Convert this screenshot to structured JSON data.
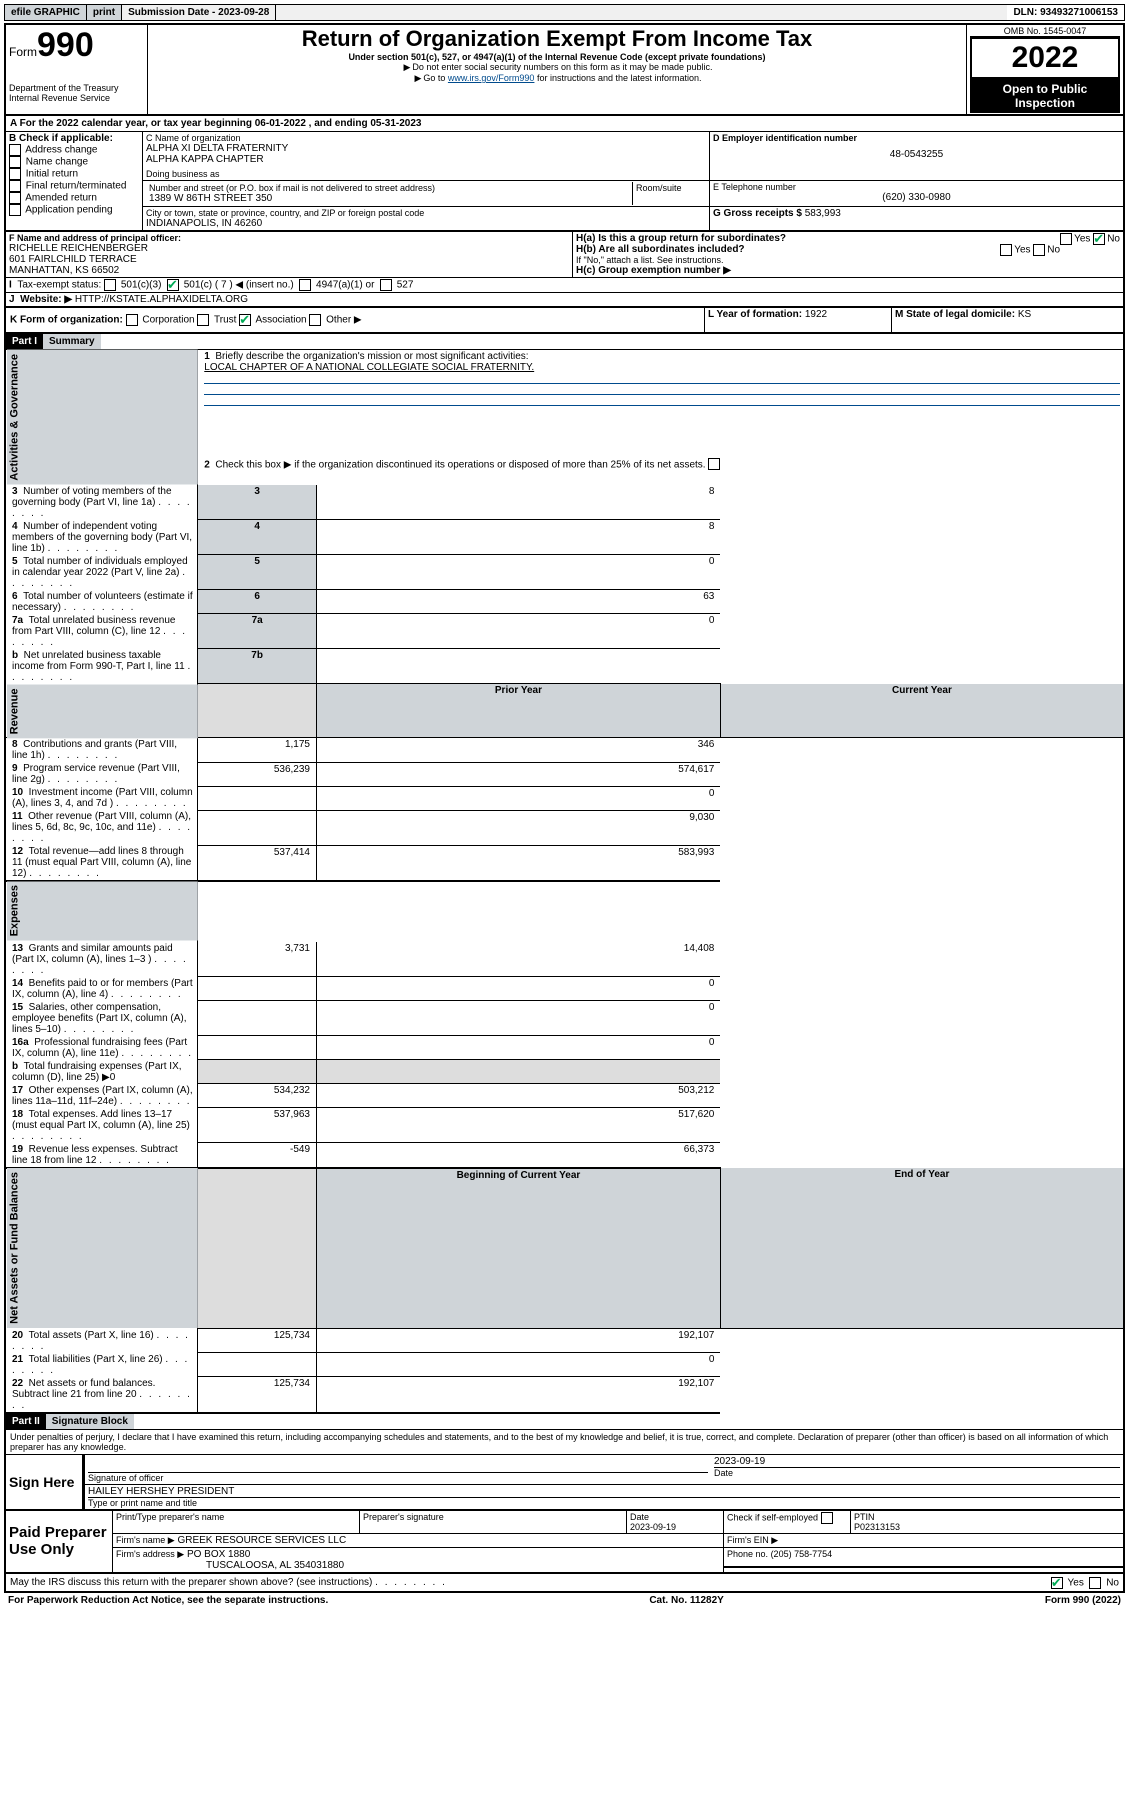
{
  "topbar": {
    "efile": "efile GRAPHIC",
    "print": "print",
    "sub_label": "Submission Date - ",
    "sub_date": "2023-09-28",
    "dln_label": "DLN: ",
    "dln": "93493271006153"
  },
  "header": {
    "form_prefix": "Form",
    "form_num": "990",
    "title": "Return of Organization Exempt From Income Tax",
    "subtitle": "Under section 501(c), 527, or 4947(a)(1) of the Internal Revenue Code (except private foundations)",
    "note1": "Do not enter social security numbers on this form as it may be made public.",
    "note2_pre": "Go to ",
    "note2_link": "www.irs.gov/Form990",
    "note2_post": " for instructions and the latest information.",
    "dept": "Department of the Treasury\nInternal Revenue Service",
    "omb": "OMB No. 1545-0047",
    "year": "2022",
    "inspect": "Open to Public Inspection"
  },
  "periodA": {
    "text_pre": "For the 2022 calendar year, or tax year beginning ",
    "begin": "06-01-2022",
    "mid": " , and ending ",
    "end": "05-31-2023"
  },
  "blockB": {
    "label": "B Check if applicable:",
    "items": [
      "Address change",
      "Name change",
      "Initial return",
      "Final return/terminated",
      "Amended return",
      "Application pending"
    ]
  },
  "blockC": {
    "name_label": "C Name of organization",
    "name1": "ALPHA XI DELTA FRATERNITY",
    "name2": "ALPHA KAPPA CHAPTER",
    "dba_label": "Doing business as",
    "addr_label": "Number and street (or P.O. box if mail is not delivered to street address)",
    "room_label": "Room/suite",
    "addr": "1389 W 86TH STREET 350",
    "city_label": "City or town, state or province, country, and ZIP or foreign postal code",
    "city": "INDIANAPOLIS, IN  46260"
  },
  "blockD": {
    "label": "D Employer identification number",
    "value": "48-0543255"
  },
  "blockE": {
    "label": "E Telephone number",
    "value": "(620) 330-0980"
  },
  "blockG": {
    "label": "G Gross receipts $",
    "value": "583,993"
  },
  "blockF": {
    "label": "F Name and address of principal officer:",
    "name": "RICHELLE REICHENBERGER",
    "addr": "601 FAIRLCHILD TERRACE",
    "city": "MANHATTAN, KS  66502"
  },
  "blockH": {
    "ha": "H(a)  Is this a group return for subordinates?",
    "hb": "H(b)  Are all subordinates included?",
    "hb_note": "If \"No,\" attach a list. See instructions.",
    "hc": "H(c)  Group exemption number ▶",
    "yes": "Yes",
    "no": "No"
  },
  "blockI": {
    "label": "Tax-exempt status:",
    "c3": "501(c)(3)",
    "c": "501(c) ( 7 ) ◀ (insert no.)",
    "a1": "4947(a)(1) or",
    "s527": "527"
  },
  "blockJ": {
    "label": "Website: ▶",
    "value": "HTTP://KSTATE.ALPHAXIDELTA.ORG"
  },
  "blockK": {
    "label": "K Form of organization:",
    "corp": "Corporation",
    "trust": "Trust",
    "assoc": "Association",
    "other": "Other ▶"
  },
  "blockL": {
    "label": "L Year of formation: ",
    "value": "1922"
  },
  "blockM": {
    "label": "M State of legal domicile: ",
    "value": "KS"
  },
  "part1": {
    "hdr": "Part I",
    "title": "Summary"
  },
  "summary": {
    "line1_label": "Briefly describe the organization's mission or most significant activities:",
    "line1_text": "LOCAL CHAPTER OF A NATIONAL COLLEGIATE SOCIAL FRATERNITY.",
    "line2": "Check this box ▶        if the organization discontinued its operations or disposed of more than 25% of its net assets.",
    "rows_top": [
      {
        "n": "3",
        "label": "Number of voting members of the governing body (Part VI, line 1a)",
        "box": "3",
        "val": "8"
      },
      {
        "n": "4",
        "label": "Number of independent voting members of the governing body (Part VI, line 1b)",
        "box": "4",
        "val": "8"
      },
      {
        "n": "5",
        "label": "Total number of individuals employed in calendar year 2022 (Part V, line 2a)",
        "box": "5",
        "val": "0"
      },
      {
        "n": "6",
        "label": "Total number of volunteers (estimate if necessary)",
        "box": "6",
        "val": "63"
      },
      {
        "n": "7a",
        "label": "Total unrelated business revenue from Part VIII, column (C), line 12",
        "box": "7a",
        "val": "0"
      },
      {
        "n": "b",
        "label": "Net unrelated business taxable income from Form 990-T, Part I, line 11",
        "box": "7b",
        "val": ""
      }
    ],
    "prior_hdr": "Prior Year",
    "curr_hdr": "Current Year",
    "revenue": [
      {
        "n": "8",
        "label": "Contributions and grants (Part VIII, line 1h)",
        "p": "1,175",
        "c": "346"
      },
      {
        "n": "9",
        "label": "Program service revenue (Part VIII, line 2g)",
        "p": "536,239",
        "c": "574,617"
      },
      {
        "n": "10",
        "label": "Investment income (Part VIII, column (A), lines 3, 4, and 7d )",
        "p": "",
        "c": "0"
      },
      {
        "n": "11",
        "label": "Other revenue (Part VIII, column (A), lines 5, 6d, 8c, 9c, 10c, and 11e)",
        "p": "",
        "c": "9,030"
      },
      {
        "n": "12",
        "label": "Total revenue—add lines 8 through 11 (must equal Part VIII, column (A), line 12)",
        "p": "537,414",
        "c": "583,993"
      }
    ],
    "expenses": [
      {
        "n": "13",
        "label": "Grants and similar amounts paid (Part IX, column (A), lines 1–3 )",
        "p": "3,731",
        "c": "14,408"
      },
      {
        "n": "14",
        "label": "Benefits paid to or for members (Part IX, column (A), line 4)",
        "p": "",
        "c": "0"
      },
      {
        "n": "15",
        "label": "Salaries, other compensation, employee benefits (Part IX, column (A), lines 5–10)",
        "p": "",
        "c": "0"
      },
      {
        "n": "16a",
        "label": "Professional fundraising fees (Part IX, column (A), line 11e)",
        "p": "",
        "c": "0"
      },
      {
        "n": "b",
        "label": "Total fundraising expenses (Part IX, column (D), line 25) ▶0",
        "p": "—",
        "c": "—"
      },
      {
        "n": "17",
        "label": "Other expenses (Part IX, column (A), lines 11a–11d, 11f–24e)",
        "p": "534,232",
        "c": "503,212"
      },
      {
        "n": "18",
        "label": "Total expenses. Add lines 13–17 (must equal Part IX, column (A), line 25)",
        "p": "537,963",
        "c": "517,620"
      },
      {
        "n": "19",
        "label": "Revenue less expenses. Subtract line 18 from line 12",
        "p": "-549",
        "c": "66,373"
      }
    ],
    "net_hdr_b": "Beginning of Current Year",
    "net_hdr_e": "End of Year",
    "net": [
      {
        "n": "20",
        "label": "Total assets (Part X, line 16)",
        "p": "125,734",
        "c": "192,107"
      },
      {
        "n": "21",
        "label": "Total liabilities (Part X, line 26)",
        "p": "",
        "c": "0"
      },
      {
        "n": "22",
        "label": "Net assets or fund balances. Subtract line 21 from line 20",
        "p": "125,734",
        "c": "192,107"
      }
    ],
    "vtabs": {
      "gov": "Activities & Governance",
      "rev": "Revenue",
      "exp": "Expenses",
      "net": "Net Assets or\nFund Balances"
    }
  },
  "part2": {
    "hdr": "Part II",
    "title": "Signature Block"
  },
  "sig": {
    "penalty": "Under penalties of perjury, I declare that I have examined this return, including accompanying schedules and statements, and to the best of my knowledge and belief, it is true, correct, and complete. Declaration of preparer (other than officer) is based on all information of which preparer has any knowledge.",
    "sign_here": "Sign Here",
    "sig_officer": "Signature of officer",
    "date_label": "Date",
    "date": "2023-09-19",
    "officer": "HAILEY HERSHEY  PRESIDENT",
    "type_label": "Type or print name and title",
    "paid": "Paid Preparer Use Only",
    "prep_name_label": "Print/Type preparer's name",
    "prep_sig_label": "Preparer's signature",
    "prep_date_label": "Date",
    "prep_date": "2023-09-19",
    "check_self": "Check        if self-employed",
    "ptin_label": "PTIN",
    "ptin": "P02313153",
    "firm_name_label": "Firm's name    ▶",
    "firm_name": "GREEK RESOURCE SERVICES LLC",
    "firm_ein_label": "Firm's EIN ▶",
    "firm_addr_label": "Firm's address ▶",
    "firm_addr1": "PO BOX 1880",
    "firm_addr2": "TUSCALOOSA, AL  354031880",
    "phone_label": "Phone no.",
    "phone": "(205) 758-7754",
    "discuss": "May the IRS discuss this return with the preparer shown above? (see instructions)"
  },
  "footer": {
    "left": "For Paperwork Reduction Act Notice, see the separate instructions.",
    "mid": "Cat. No. 11282Y",
    "right": "Form 990 (2022)"
  }
}
